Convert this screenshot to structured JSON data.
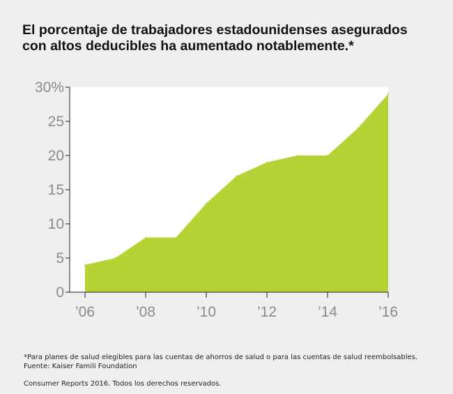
{
  "title_lines": [
    "El porcentaje de trabajadores estadounidenses asegurados",
    "con altos deducibles ha aumentado notablemente.*"
  ],
  "chart_data": {
    "type": "area",
    "x": [
      2006,
      2007,
      2008,
      2009,
      2010,
      2011,
      2012,
      2013,
      2014,
      2015,
      2016
    ],
    "values": [
      4,
      5,
      8,
      8,
      13,
      17,
      19,
      20,
      20,
      24,
      29
    ],
    "xlim": [
      2006,
      2016
    ],
    "ylim": [
      0,
      30
    ],
    "y_ticks": [
      0,
      5,
      10,
      15,
      20,
      25,
      30
    ],
    "y_tick_labels": [
      "0",
      "5",
      "10",
      "15",
      "20",
      "25",
      "30%"
    ],
    "x_ticks": [
      2006,
      2008,
      2010,
      2012,
      2014,
      2016
    ],
    "x_tick_labels": [
      "’06",
      "’08",
      "’10",
      "’12",
      "’14",
      "’16"
    ],
    "grid": false,
    "fill_color": "#b5d334",
    "plot_background": "#ffffff"
  },
  "footnotes": {
    "note": "*Para planes de salud elegibles para  las cuentas de ahorros de salud o para  las cuentas de salud reembolsables.",
    "source": "Fuente: Kaiser Famili Foundation",
    "copyright": "Consumer Reports 2016. Todos los derechos reservados."
  }
}
